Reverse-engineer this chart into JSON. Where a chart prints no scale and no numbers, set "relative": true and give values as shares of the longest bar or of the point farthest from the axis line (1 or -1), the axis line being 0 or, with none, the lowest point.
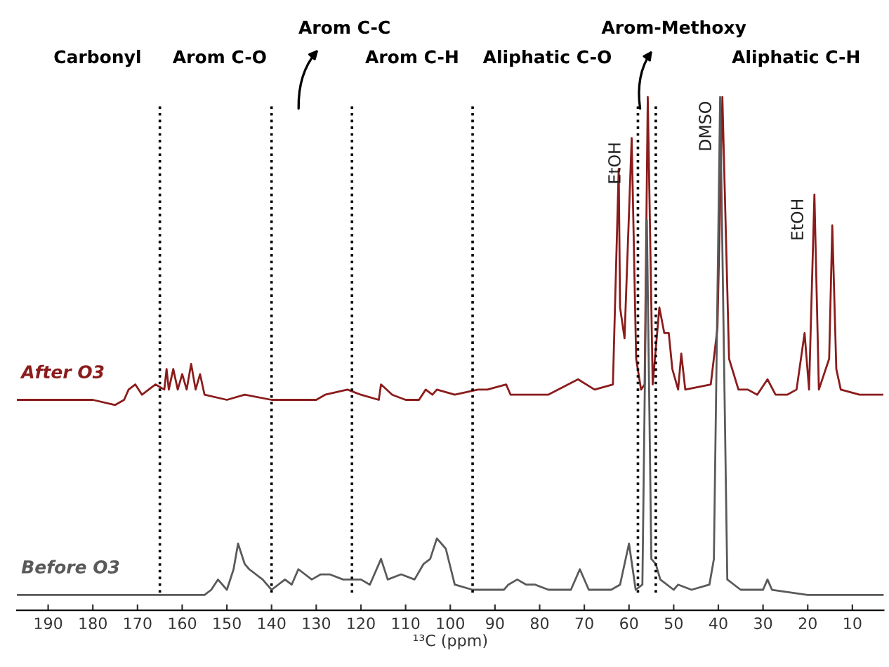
{
  "chart_data": {
    "type": "line",
    "relative": true,
    "xlabel": "¹³C (ppm)",
    "xlim": [
      197,
      3
    ],
    "xticks": [
      190,
      180,
      170,
      160,
      150,
      140,
      130,
      120,
      110,
      100,
      90,
      80,
      70,
      60,
      50,
      40,
      30,
      20,
      10
    ],
    "tick_labels": "x",
    "grid": false,
    "legend": false,
    "marker": "none",
    "line_style": "solid",
    "series": [
      {
        "name": "After O3",
        "color": "#8b1c1c",
        "x": [
          197,
          180,
          175,
          173,
          172,
          170.5,
          169,
          166,
          164,
          163.5,
          163,
          162,
          161,
          160,
          159,
          158,
          157,
          156,
          155,
          150,
          146,
          140,
          130,
          128,
          123,
          120,
          116,
          115.5,
          113,
          110,
          107,
          105.5,
          104,
          103,
          99,
          93.8,
          91.7,
          87.5,
          86.5,
          78.1,
          71.4,
          67.7,
          63.6,
          62.3,
          62.0,
          61.0,
          59.4,
          58.4,
          57.3,
          56.5,
          55.8,
          54.7,
          53.2,
          52.1,
          51.1,
          50.3,
          49.0,
          48.3,
          47.4,
          41.7,
          40.2,
          39.1,
          37.6,
          35.5,
          33.4,
          31.3,
          29.0,
          27.2,
          24.6,
          22.5,
          20.7,
          19.7,
          18.5,
          17.5,
          15.2,
          14.5,
          13.6,
          12.6,
          8.4,
          3.3
        ],
        "values": [
          0.41,
          0.41,
          0.4,
          0.41,
          0.43,
          0.44,
          0.42,
          0.44,
          0.43,
          0.47,
          0.43,
          0.47,
          0.43,
          0.46,
          0.43,
          0.48,
          0.43,
          0.46,
          0.42,
          0.41,
          0.42,
          0.41,
          0.41,
          0.42,
          0.43,
          0.42,
          0.41,
          0.44,
          0.42,
          0.41,
          0.41,
          0.43,
          0.42,
          0.43,
          0.42,
          0.43,
          0.43,
          0.44,
          0.42,
          0.42,
          0.45,
          0.43,
          0.44,
          0.86,
          0.59,
          0.53,
          0.92,
          0.49,
          0.43,
          0.44,
          1.0,
          0.44,
          0.59,
          0.54,
          0.54,
          0.47,
          0.43,
          0.5,
          0.43,
          0.44,
          0.55,
          1.0,
          0.49,
          0.43,
          0.43,
          0.42,
          0.45,
          0.42,
          0.42,
          0.43,
          0.54,
          0.43,
          0.81,
          0.43,
          0.49,
          0.75,
          0.47,
          0.43,
          0.42,
          0.42
        ]
      },
      {
        "name": "Before O3",
        "color": "#5a5a5a",
        "x": [
          197,
          185,
          170,
          160,
          155,
          153.5,
          152,
          150,
          148.5,
          147.5,
          146,
          145,
          142,
          140,
          137,
          135.5,
          134,
          131,
          129,
          127,
          124,
          120,
          118,
          115.5,
          114,
          111,
          108,
          106,
          104.5,
          103,
          101,
          99,
          95,
          88,
          87,
          85,
          83,
          81,
          78,
          73,
          71,
          69,
          67,
          64,
          62,
          60,
          58.5,
          57,
          56,
          55,
          54,
          53,
          50,
          49,
          46,
          42,
          41,
          39.6,
          38,
          35,
          30,
          29,
          28,
          20,
          10,
          3
        ],
        "values": [
          0.03,
          0.03,
          0.03,
          0.03,
          0.03,
          0.04,
          0.06,
          0.04,
          0.08,
          0.13,
          0.09,
          0.08,
          0.06,
          0.04,
          0.06,
          0.05,
          0.08,
          0.06,
          0.07,
          0.07,
          0.06,
          0.06,
          0.05,
          0.1,
          0.06,
          0.07,
          0.06,
          0.09,
          0.1,
          0.14,
          0.12,
          0.05,
          0.04,
          0.04,
          0.05,
          0.06,
          0.05,
          0.05,
          0.04,
          0.04,
          0.08,
          0.04,
          0.04,
          0.04,
          0.05,
          0.13,
          0.04,
          0.05,
          0.76,
          0.1,
          0.09,
          0.06,
          0.04,
          0.05,
          0.04,
          0.05,
          0.1,
          1.0,
          0.06,
          0.04,
          0.04,
          0.06,
          0.04,
          0.03,
          0.03,
          0.03
        ]
      }
    ],
    "ref_lines": [
      {
        "axis": "x",
        "value": 165,
        "line_style": "dotted",
        "color": "#000000"
      },
      {
        "axis": "x",
        "value": 140,
        "line_style": "dotted",
        "color": "#000000"
      },
      {
        "axis": "x",
        "value": 122,
        "line_style": "dotted",
        "color": "#000000"
      },
      {
        "axis": "x",
        "value": 95,
        "line_style": "dotted",
        "color": "#000000"
      },
      {
        "axis": "x",
        "value": 58,
        "line_style": "dotted",
        "color": "#000000"
      },
      {
        "axis": "x",
        "value": 54,
        "line_style": "dotted",
        "color": "#000000"
      }
    ],
    "annotations": [
      "Carbonyl",
      "Arom C-O",
      "Arom C-C",
      "Arom C-H",
      "Aliphatic C-O",
      "Arom-Methoxy",
      "Aliphatic C-H",
      {
        "text": "EtOH",
        "x": 59.4,
        "y": 0.92
      },
      {
        "text": "DMSO",
        "x": 39.1,
        "y": 1.0
      },
      {
        "text": "EtOH",
        "x": 18.5,
        "y": 0.81
      }
    ]
  }
}
